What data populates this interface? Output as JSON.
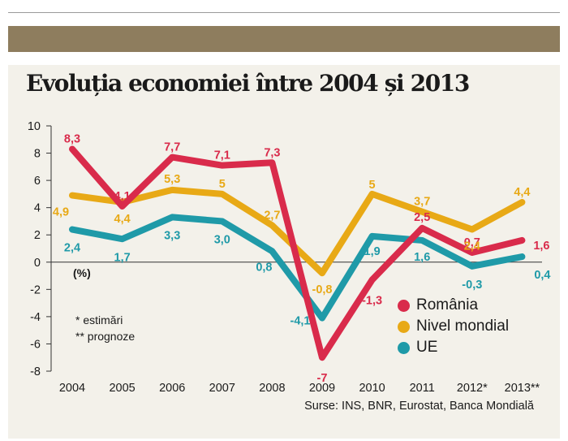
{
  "title": "Evoluția economiei între 2004 și 2013",
  "notes": {
    "estimates": "* estimări",
    "forecasts": "** prognoze"
  },
  "unit_label": "(%)",
  "source": "Surse: INS, BNR, Eurostat, Banca Mondială",
  "colors": {
    "band": "#8e7d5e",
    "panel": "#f3f1ea"
  },
  "chart_data": {
    "type": "line",
    "title": "Evoluția economiei între 2004 și 2013",
    "xlabel": "",
    "ylabel": "(%)",
    "ylim": [
      -8,
      10
    ],
    "yticks": [
      "10",
      "8",
      "6",
      "4",
      "2",
      "0",
      "-2",
      "-4",
      "-6",
      "-8"
    ],
    "categories": [
      "2004",
      "2005",
      "2006",
      "2007",
      "2008",
      "2009",
      "2010",
      "2011",
      "2012*",
      "2013**"
    ],
    "legend_position": "right",
    "series": [
      {
        "name": "România",
        "color": "#d92b4b",
        "values": [
          8.3,
          4.1,
          7.7,
          7.1,
          7.3,
          -7,
          -1.3,
          2.5,
          0.7,
          1.6
        ],
        "labels": [
          "8,3",
          "4,1",
          "7,7",
          "7,1",
          "7,3",
          "-7",
          "-1,3",
          "2,5",
          "0,7",
          "1,6"
        ]
      },
      {
        "name": "Nivel mondial",
        "color": "#e8a916",
        "values": [
          4.9,
          4.4,
          5.3,
          5,
          2.7,
          -0.8,
          5,
          3.7,
          2.4,
          4.4
        ],
        "labels": [
          "4,9",
          "4,4",
          "5,3",
          "5",
          "2,7",
          "-0,8",
          "5",
          "3,7",
          "2,4",
          "4,4"
        ]
      },
      {
        "name": "UE",
        "color": "#1f9aa8",
        "values": [
          2.4,
          1.7,
          3.3,
          3.0,
          0.8,
          -4.1,
          1.9,
          1.6,
          -0.3,
          0.4
        ],
        "labels": [
          "2,4",
          "1,7",
          "3,3",
          "3,0",
          "0,8",
          "-4,1",
          "1,9",
          "1,6",
          "-0,3",
          "0,4"
        ]
      }
    ]
  }
}
